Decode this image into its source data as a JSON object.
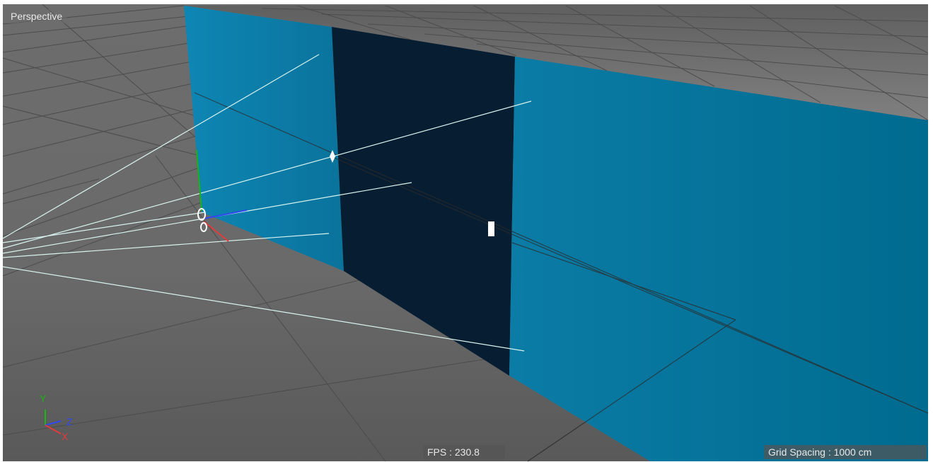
{
  "viewport": {
    "view_mode_label": "Perspective",
    "fps_readout": "FPS : 230.8",
    "grid_spacing_readout": "Grid Spacing : 1000 cm"
  },
  "axis_gizmo": {
    "y_label": "Y",
    "z_label": "Z",
    "x_label": "X"
  },
  "colors": {
    "floor": "#6e6e6e",
    "wall_blue": "#0f86b0",
    "wall_dark": "#071d31",
    "grid_line": "#4a4a4a",
    "light_ray": "#d8f2ee",
    "axis_y": "#17b515",
    "axis_z": "#2f48ef",
    "axis_x": "#e33a3a"
  }
}
